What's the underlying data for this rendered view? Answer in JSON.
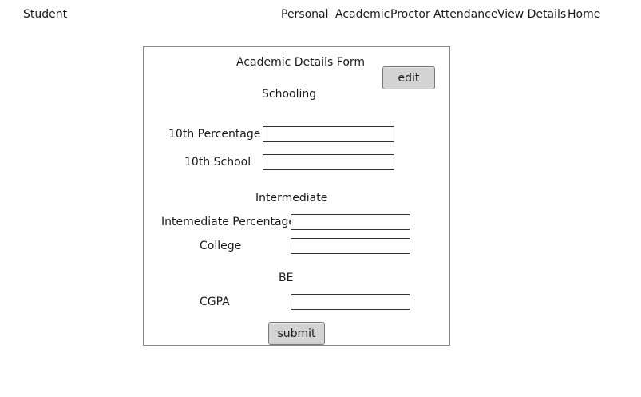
{
  "header": {
    "brand": "Student",
    "nav": {
      "personal": "Personal",
      "academic": "Academic",
      "proctor": "Proctor",
      "attendance": "Attendance",
      "view_details": "View Details",
      "home": "Home"
    }
  },
  "form": {
    "title": "Academic Details Form",
    "edit_label": "edit",
    "submit_label": "submit",
    "schooling": {
      "heading": "Schooling",
      "tenth_percentage_label": "10th Percentage",
      "tenth_percentage_value": "",
      "tenth_school_label": "10th School",
      "tenth_school_value": ""
    },
    "intermediate": {
      "heading": "Intermediate",
      "percentage_label": "Intemediate Percentage",
      "percentage_value": "",
      "college_label": "College",
      "college_value": ""
    },
    "be": {
      "heading": "BE",
      "cgpa_label": "CGPA",
      "cgpa_value": ""
    }
  }
}
